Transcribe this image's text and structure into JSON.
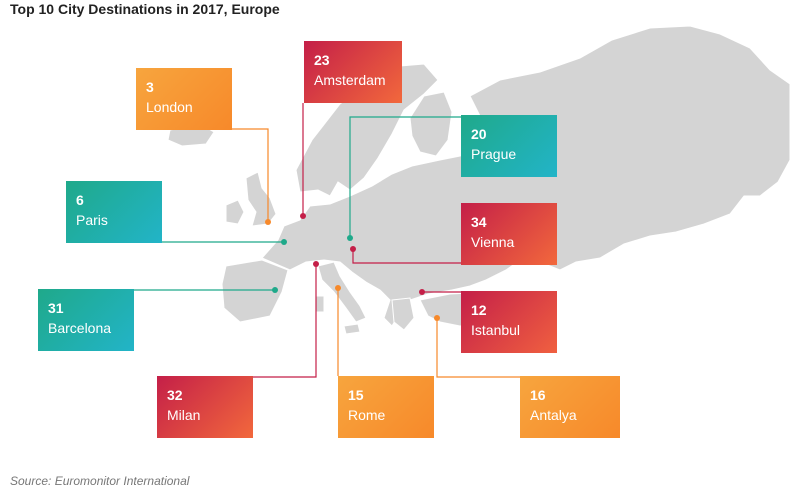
{
  "title": "Top 10 City Destinations in 2017, Europe",
  "source": "Source: Euromonitor International",
  "colors": {
    "orange": "#f7892a",
    "red": "#c41f48",
    "teal": "#1fa98a",
    "land": "#d4d4d4"
  },
  "cities": [
    {
      "key": "london",
      "rank": "3",
      "name": "London"
    },
    {
      "key": "amsterdam",
      "rank": "23",
      "name": "Amsterdam"
    },
    {
      "key": "prague",
      "rank": "20",
      "name": "Prague"
    },
    {
      "key": "paris",
      "rank": "6",
      "name": "Paris"
    },
    {
      "key": "vienna",
      "rank": "34",
      "name": "Vienna"
    },
    {
      "key": "barcelona",
      "rank": "31",
      "name": "Barcelona"
    },
    {
      "key": "istanbul",
      "rank": "12",
      "name": "Istanbul"
    },
    {
      "key": "milan",
      "rank": "32",
      "name": "Milan"
    },
    {
      "key": "rome",
      "rank": "15",
      "name": "Rome"
    },
    {
      "key": "antalya",
      "rank": "16",
      "name": "Antalya"
    }
  ]
}
